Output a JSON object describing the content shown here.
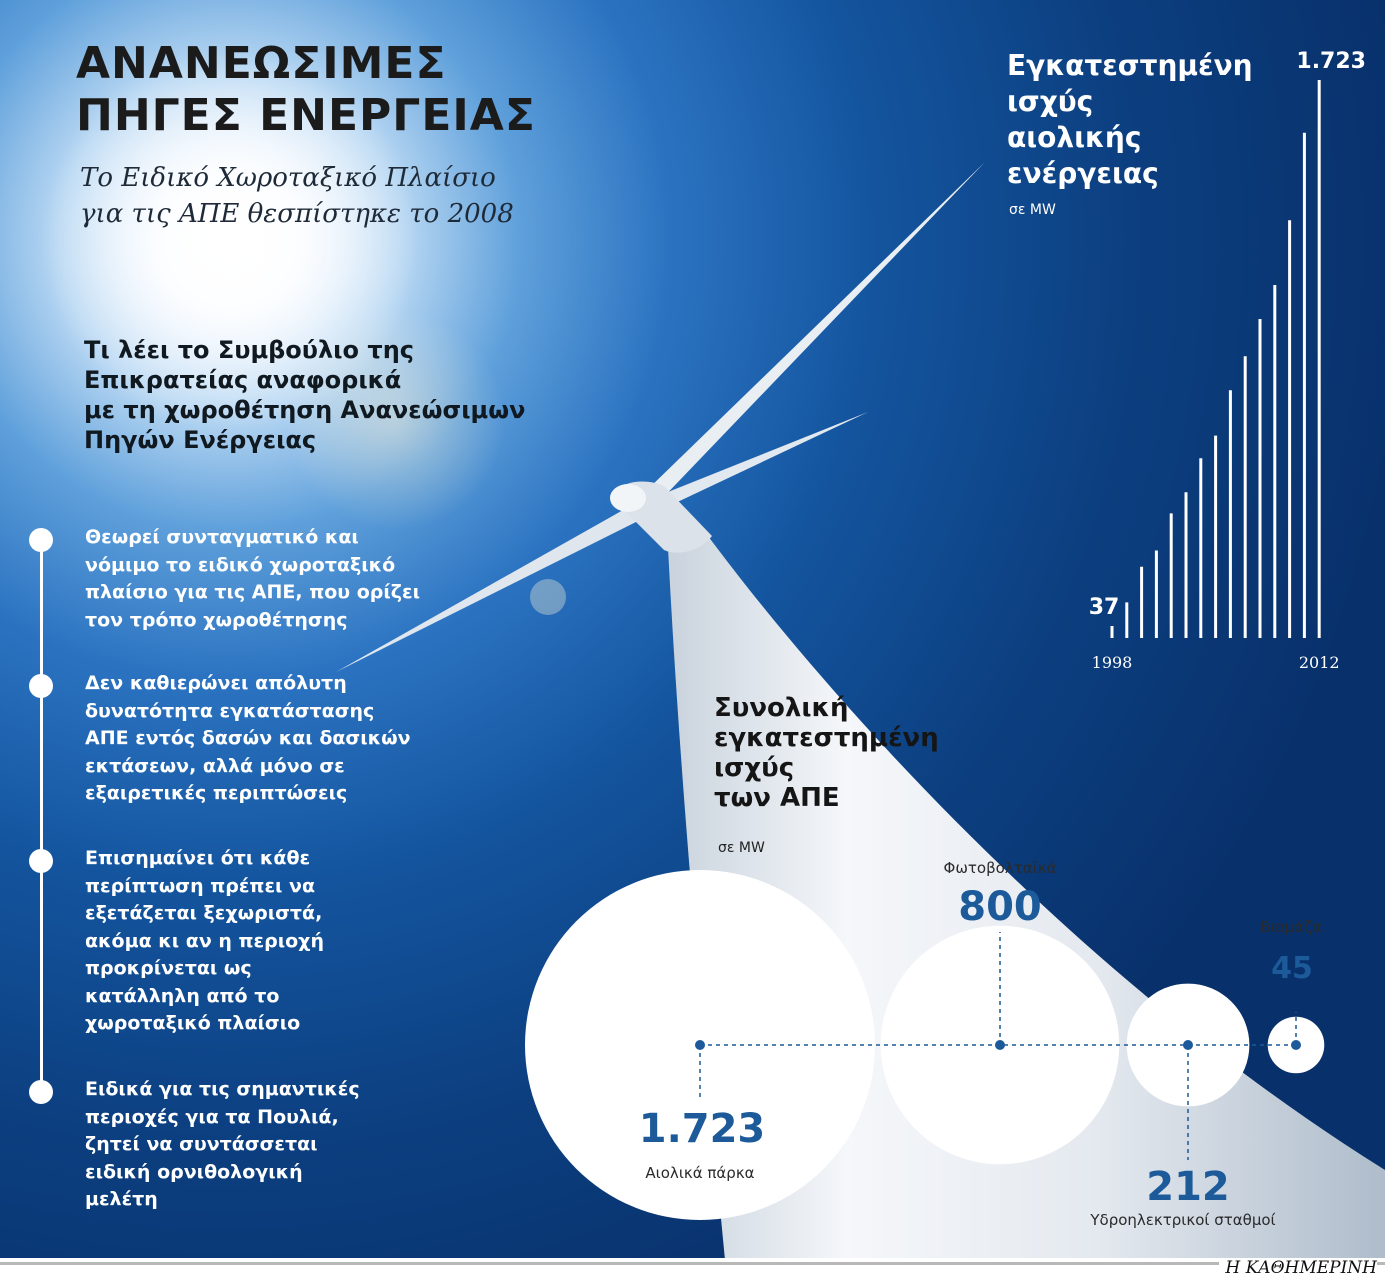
{
  "header": {
    "title_line1": "ΑΝΑΝΕΩΣΙΜΕΣ",
    "title_line2": "ΠΗΓΕΣ ΕΝΕΡΓΕΙΑΣ",
    "subtitle_line1": "Το Ειδικό Χωροταξικό Πλαίσιο",
    "subtitle_line2": "για τις ΑΠΕ θεσπίστηκε το 2008"
  },
  "ste_section": {
    "heading_lines": [
      "Τι λέει το Συμβούλιο της",
      "Επικρατείας αναφορικά",
      "με τη χωροθέτηση Ανανεώσιμων",
      "Πηγών Ενέργειας"
    ],
    "points": [
      {
        "lines": [
          "Θεωρεί συνταγματικό και",
          "νόμιμο το ειδικό χωροταξικό",
          "πλαίσιο για τις ΑΠΕ, που ορίζει",
          "τον τρόπο χωροθέτησης"
        ]
      },
      {
        "lines": [
          "Δεν καθιερώνει απόλυτη",
          "δυνατότητα εγκατάστασης",
          "ΑΠΕ εντός δασών και δασικών",
          "εκτάσεων, αλλά μόνο σε",
          "εξαιρετικές περιπτώσεις"
        ]
      },
      {
        "lines": [
          "Επισημαίνει ότι κάθε",
          "περίπτωση πρέπει να",
          "εξετάζεται ξεχωριστά,",
          "ακόμα κι αν η περιοχή",
          "προκρίνεται ως",
          "κατάλληλη από το",
          "χωροταξικό πλαίσιο"
        ]
      },
      {
        "lines": [
          "Ειδικά για τις σημαντικές",
          "περιοχές για τα Πουλιά,",
          "ζητεί να συντάσσεται",
          "ειδική ορνιθολογική",
          "μελέτη"
        ]
      }
    ]
  },
  "wind_chart": {
    "title_lines": [
      "Εγκατεστημένη",
      "ισχύς",
      "αιολικής",
      "ενέργειας"
    ],
    "unit": "σε MW"
  },
  "total_chart": {
    "title_lines": [
      "Συνολική",
      "εγκατεστημένη",
      "ισχύς",
      "των ΑΠΕ"
    ],
    "unit": "σε MW"
  },
  "footer": {
    "brand": "Η ΚΑΘΗΜΕΡΙΝΗ"
  },
  "colors": {
    "accent": "#1c5a9a",
    "sky_dark": "#0c3f80",
    "sky_light": "#5fa0db",
    "white": "#ffffff"
  },
  "chart_data": [
    {
      "type": "bar",
      "x": [
        1998,
        1999,
        2000,
        2001,
        2002,
        2003,
        2004,
        2005,
        2006,
        2007,
        2008,
        2009,
        2010,
        2011,
        2012
      ],
      "values": [
        37,
        110,
        220,
        270,
        385,
        450,
        555,
        625,
        765,
        870,
        985,
        1090,
        1290,
        1560,
        1723
      ],
      "value_labels": [
        "37",
        null,
        null,
        null,
        null,
        null,
        null,
        null,
        null,
        null,
        null,
        null,
        null,
        null,
        "1.723"
      ],
      "tick_labels": [
        "1998",
        "2012"
      ],
      "ylim": [
        0,
        1723
      ]
    },
    {
      "type": "bubble",
      "categories": [
        "Αιολικά πάρκα",
        "Φωτοβολταϊκά",
        "Υδροηλεκτρικοί σταθμοί",
        "Βιομάζα"
      ],
      "values": [
        1723,
        800,
        212,
        45
      ],
      "value_labels": [
        "1.723",
        "800",
        "212",
        "45"
      ]
    }
  ]
}
